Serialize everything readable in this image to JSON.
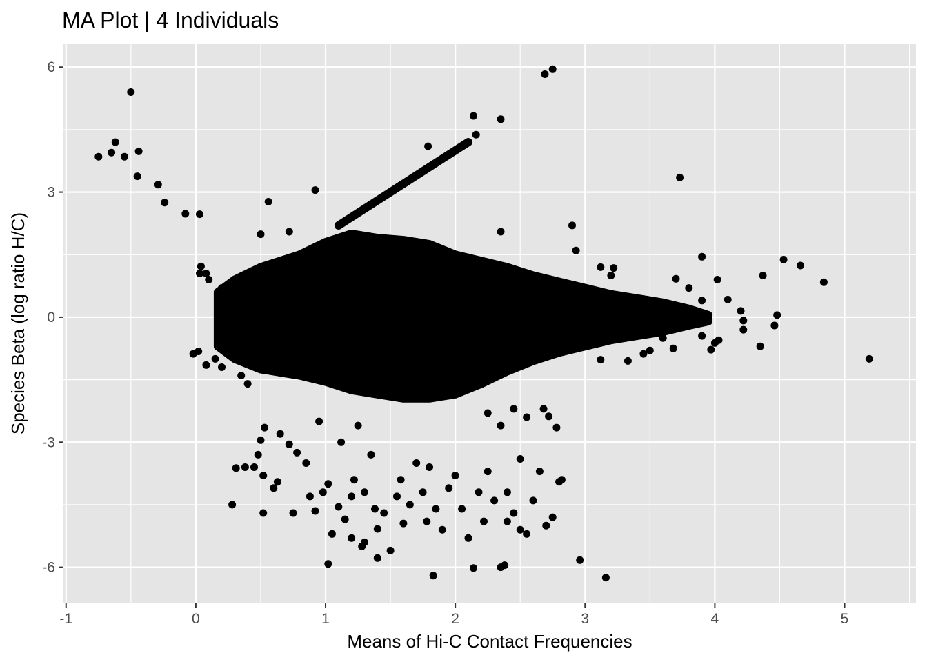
{
  "chart_data": {
    "type": "scatter",
    "title": "MA Plot | 4 Individuals",
    "xlabel": "Means of Hi-C Contact Frequencies",
    "ylabel": "Species Beta (log ratio H/C)",
    "xlim": [
      -1.02,
      5.55
    ],
    "ylim": [
      -6.85,
      6.55
    ],
    "x_ticks": [
      -1,
      0,
      1,
      2,
      3,
      4,
      5
    ],
    "x_tick_labels": [
      "-1",
      "0",
      "1",
      "2",
      "3",
      "4",
      "5"
    ],
    "y_ticks": [
      -6,
      -3,
      0,
      3,
      6
    ],
    "y_tick_labels": [
      "-6",
      "-3",
      "0",
      "3",
      "6"
    ],
    "grid": true,
    "panel_background": "#e5e5e5",
    "grid_color": "#ffffff",
    "point_color": "#000000",
    "dense_core": {
      "upper_envelope": [
        [
          0.17,
          0.6
        ],
        [
          0.3,
          0.9
        ],
        [
          0.5,
          1.2
        ],
        [
          0.8,
          1.5
        ],
        [
          1.0,
          1.8
        ],
        [
          1.2,
          2.0
        ],
        [
          1.4,
          1.9
        ],
        [
          1.6,
          1.85
        ],
        [
          1.8,
          1.75
        ],
        [
          2.0,
          1.5
        ],
        [
          2.2,
          1.35
        ],
        [
          2.4,
          1.2
        ],
        [
          2.6,
          1.0
        ],
        [
          2.8,
          0.85
        ],
        [
          3.0,
          0.7
        ],
        [
          3.2,
          0.55
        ],
        [
          3.4,
          0.45
        ],
        [
          3.6,
          0.35
        ],
        [
          3.8,
          0.2
        ],
        [
          3.95,
          0.05
        ]
      ],
      "lower_envelope": [
        [
          3.95,
          -0.1
        ],
        [
          3.8,
          -0.2
        ],
        [
          3.6,
          -0.35
        ],
        [
          3.4,
          -0.45
        ],
        [
          3.2,
          -0.55
        ],
        [
          3.0,
          -0.7
        ],
        [
          2.8,
          -0.85
        ],
        [
          2.6,
          -1.05
        ],
        [
          2.4,
          -1.3
        ],
        [
          2.2,
          -1.6
        ],
        [
          2.0,
          -1.85
        ],
        [
          1.8,
          -1.95
        ],
        [
          1.6,
          -1.95
        ],
        [
          1.4,
          -1.85
        ],
        [
          1.2,
          -1.75
        ],
        [
          1.0,
          -1.55
        ],
        [
          0.8,
          -1.4
        ],
        [
          0.5,
          -1.25
        ],
        [
          0.3,
          -1.0
        ],
        [
          0.17,
          -0.7
        ]
      ]
    },
    "diagonal_band": {
      "start": [
        1.1,
        2.2
      ],
      "end": [
        2.1,
        4.2
      ]
    },
    "points": [
      [
        -0.5,
        5.4
      ],
      [
        -0.75,
        3.85
      ],
      [
        -0.65,
        3.95
      ],
      [
        -0.62,
        4.2
      ],
      [
        -0.55,
        3.85
      ],
      [
        -0.44,
        3.98
      ],
      [
        -0.45,
        3.38
      ],
      [
        -0.29,
        3.18
      ],
      [
        -0.24,
        2.75
      ],
      [
        -0.08,
        2.48
      ],
      [
        0.03,
        2.47
      ],
      [
        2.69,
        5.83
      ],
      [
        2.75,
        5.95
      ],
      [
        2.14,
        4.83
      ],
      [
        2.35,
        4.75
      ],
      [
        2.16,
        4.38
      ],
      [
        1.79,
        4.1
      ],
      [
        0.92,
        3.05
      ],
      [
        0.56,
        2.77
      ],
      [
        3.73,
        3.35
      ],
      [
        2.9,
        2.2
      ],
      [
        2.35,
        2.05
      ],
      [
        2.93,
        1.6
      ],
      [
        0.5,
        1.99
      ],
      [
        0.72,
        2.05
      ],
      [
        3.12,
        1.2
      ],
      [
        3.22,
        1.18
      ],
      [
        3.2,
        1.0
      ],
      [
        3.9,
        1.45
      ],
      [
        4.53,
        1.38
      ],
      [
        4.66,
        1.24
      ],
      [
        4.37,
        1.0
      ],
      [
        4.84,
        0.84
      ],
      [
        3.7,
        0.92
      ],
      [
        3.8,
        0.7
      ],
      [
        4.02,
        0.9
      ],
      [
        3.9,
        0.4
      ],
      [
        4.1,
        0.42
      ],
      [
        4.2,
        0.15
      ],
      [
        4.22,
        -0.08
      ],
      [
        4.48,
        0.05
      ],
      [
        4.46,
        -0.2
      ],
      [
        4.22,
        -0.3
      ],
      [
        4.03,
        -0.55
      ],
      [
        4.0,
        -0.62
      ],
      [
        3.97,
        -0.78
      ],
      [
        4.35,
        -0.7
      ],
      [
        3.9,
        -0.45
      ],
      [
        3.9,
        0.0
      ],
      [
        3.85,
        0.1
      ],
      [
        3.68,
        -0.75
      ],
      [
        3.6,
        -0.5
      ],
      [
        3.5,
        -0.8
      ],
      [
        3.45,
        -0.88
      ],
      [
        3.12,
        -1.02
      ],
      [
        3.33,
        -1.05
      ],
      [
        5.19,
        -1.0
      ],
      [
        0.04,
        1.22
      ],
      [
        0.08,
        1.05
      ],
      [
        0.1,
        0.9
      ],
      [
        0.03,
        1.05
      ],
      [
        0.2,
        0.7
      ],
      [
        0.02,
        -0.82
      ],
      [
        -0.02,
        -0.88
      ],
      [
        0.08,
        -1.15
      ],
      [
        0.15,
        -1.0
      ],
      [
        0.2,
        -1.2
      ],
      [
        0.35,
        -1.4
      ],
      [
        0.4,
        -1.6
      ],
      [
        0.28,
        -4.5
      ],
      [
        0.52,
        -4.7
      ],
      [
        0.53,
        -2.65
      ],
      [
        0.5,
        -2.95
      ],
      [
        0.48,
        -3.3
      ],
      [
        0.45,
        -3.6
      ],
      [
        0.38,
        -3.6
      ],
      [
        0.31,
        -3.62
      ],
      [
        0.52,
        -3.8
      ],
      [
        0.6,
        -4.1
      ],
      [
        0.63,
        -3.95
      ],
      [
        0.65,
        -2.8
      ],
      [
        0.72,
        -3.05
      ],
      [
        0.78,
        -3.25
      ],
      [
        0.85,
        -3.5
      ],
      [
        0.95,
        -2.5
      ],
      [
        0.88,
        -4.3
      ],
      [
        0.75,
        -4.7
      ],
      [
        0.92,
        -4.65
      ],
      [
        0.98,
        -4.2
      ],
      [
        1.02,
        -5.92
      ],
      [
        1.05,
        -5.2
      ],
      [
        1.1,
        -4.55
      ],
      [
        1.15,
        -4.85
      ],
      [
        1.2,
        -4.3
      ],
      [
        1.22,
        -3.9
      ],
      [
        1.28,
        -5.5
      ],
      [
        1.3,
        -4.2
      ],
      [
        1.35,
        -3.3
      ],
      [
        1.38,
        -4.6
      ],
      [
        1.4,
        -5.08
      ],
      [
        1.45,
        -4.7
      ],
      [
        1.5,
        -5.6
      ],
      [
        1.55,
        -4.3
      ],
      [
        1.58,
        -3.9
      ],
      [
        1.6,
        -4.95
      ],
      [
        1.65,
        -4.5
      ],
      [
        1.7,
        -3.5
      ],
      [
        1.75,
        -4.2
      ],
      [
        1.78,
        -4.9
      ],
      [
        1.8,
        -3.6
      ],
      [
        1.83,
        -6.2
      ],
      [
        1.85,
        -4.6
      ],
      [
        1.9,
        -5.1
      ],
      [
        1.95,
        -4.1
      ],
      [
        2.0,
        -3.8
      ],
      [
        2.05,
        -4.6
      ],
      [
        2.1,
        -5.3
      ],
      [
        2.14,
        -6.02
      ],
      [
        2.18,
        -4.2
      ],
      [
        2.22,
        -4.9
      ],
      [
        2.25,
        -3.7
      ],
      [
        2.3,
        -4.4
      ],
      [
        2.35,
        -6.0
      ],
      [
        2.38,
        -5.95
      ],
      [
        2.4,
        -4.9
      ],
      [
        2.45,
        -4.7
      ],
      [
        2.5,
        -5.1
      ],
      [
        2.55,
        -5.2
      ],
      [
        2.6,
        -4.4
      ],
      [
        2.65,
        -3.7
      ],
      [
        2.7,
        -5.0
      ],
      [
        2.75,
        -4.8
      ],
      [
        2.8,
        -3.95
      ],
      [
        2.78,
        -2.65
      ],
      [
        2.72,
        -2.38
      ],
      [
        2.68,
        -2.2
      ],
      [
        2.55,
        -2.4
      ],
      [
        2.45,
        -2.2
      ],
      [
        2.35,
        -2.6
      ],
      [
        2.25,
        -2.3
      ],
      [
        1.4,
        -5.78
      ],
      [
        1.02,
        -4.0
      ],
      [
        1.12,
        -3.0
      ],
      [
        1.25,
        -2.6
      ],
      [
        1.3,
        -5.4
      ],
      [
        1.2,
        -5.3
      ],
      [
        2.96,
        -5.83
      ],
      [
        3.16,
        -6.25
      ],
      [
        2.82,
        -3.9
      ],
      [
        2.5,
        -3.4
      ],
      [
        2.4,
        -4.2
      ]
    ]
  }
}
